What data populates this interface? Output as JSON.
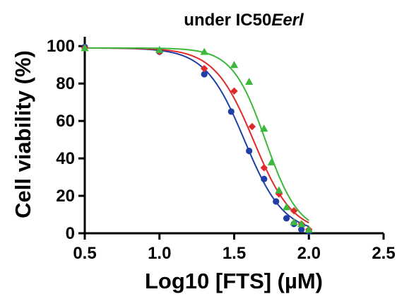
{
  "chart_data": {
    "type": "scatter",
    "title": "under IC50",
    "title_italic": "Eerl",
    "xlabel": "Log10 [FTS] (µM)",
    "ylabel": "Cell viability (%)",
    "xlim": [
      0.5,
      2.5
    ],
    "ylim": [
      0,
      105
    ],
    "xticks": [
      "0.5",
      "1.0",
      "1.5",
      "2.0",
      "2.5"
    ],
    "yticks": [
      "0",
      "20",
      "40",
      "60",
      "80",
      "100"
    ],
    "xtick_values": [
      0.5,
      1.0,
      1.5,
      2.0,
      2.5
    ],
    "ytick_values": [
      0,
      20,
      40,
      60,
      80,
      100
    ],
    "grid": false,
    "legend": "none",
    "series": [
      {
        "color": "#1f3fa6",
        "marker": "circle",
        "x": [
          0.5,
          1.0,
          1.3,
          1.48,
          1.6,
          1.7,
          1.78,
          1.85,
          1.9,
          1.95,
          2.0
        ],
        "y": [
          99.5,
          97,
          85,
          65,
          44,
          29,
          17,
          8,
          5,
          2,
          1
        ],
        "fit": {
          "top": 99,
          "bottom": 0,
          "logEC50": 1.57,
          "hill": 3.3
        }
      },
      {
        "color": "#e02a2a",
        "marker": "diamond",
        "x": [
          0.5,
          1.0,
          1.3,
          1.5,
          1.62,
          1.7,
          1.8,
          1.9,
          1.95,
          2.0
        ],
        "y": [
          99,
          97,
          88,
          76,
          57,
          35,
          21,
          12,
          5,
          2
        ],
        "fit": {
          "top": 99,
          "bottom": 0,
          "logEC50": 1.63,
          "hill": 3.3
        }
      },
      {
        "color": "#3cb83c",
        "marker": "triangle",
        "x": [
          0.5,
          1.0,
          1.3,
          1.5,
          1.6,
          1.7,
          1.75,
          1.8,
          1.85,
          1.9,
          1.95,
          2.0
        ],
        "y": [
          99,
          98,
          97,
          90,
          81,
          56,
          38,
          23,
          14,
          6,
          5,
          2
        ],
        "fit": {
          "top": 99,
          "bottom": 0,
          "logEC50": 1.71,
          "hill": 3.9
        }
      }
    ]
  }
}
